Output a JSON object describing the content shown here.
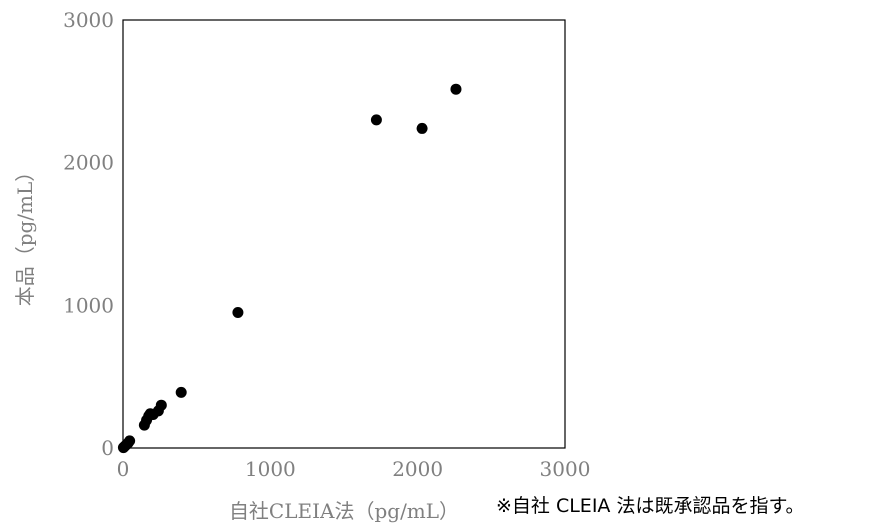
{
  "chart_data": {
    "type": "scatter",
    "xlabel": "自社CLEIA法（pg/mL）",
    "ylabel": "本品（pg/mL）",
    "xlim": [
      0,
      3000
    ],
    "ylim": [
      0,
      3000
    ],
    "xticks": [
      "0",
      "1000",
      "2000",
      "3000"
    ],
    "yticks": [
      "0",
      "1000",
      "2000",
      "3000"
    ],
    "grid": false,
    "point_color": "#000000",
    "points": [
      {
        "x": 3,
        "y": 3
      },
      {
        "x": 8,
        "y": 8
      },
      {
        "x": 15,
        "y": 15
      },
      {
        "x": 25,
        "y": 25
      },
      {
        "x": 35,
        "y": 35
      },
      {
        "x": 45,
        "y": 50
      },
      {
        "x": 145,
        "y": 160
      },
      {
        "x": 160,
        "y": 195
      },
      {
        "x": 175,
        "y": 225
      },
      {
        "x": 185,
        "y": 240
      },
      {
        "x": 205,
        "y": 235
      },
      {
        "x": 240,
        "y": 260
      },
      {
        "x": 260,
        "y": 300
      },
      {
        "x": 395,
        "y": 390
      },
      {
        "x": 780,
        "y": 950
      },
      {
        "x": 1720,
        "y": 2300
      },
      {
        "x": 2030,
        "y": 2240
      },
      {
        "x": 2260,
        "y": 2515
      }
    ]
  },
  "footnote": "※自社 CLEIA 法は既承認品を指す。"
}
